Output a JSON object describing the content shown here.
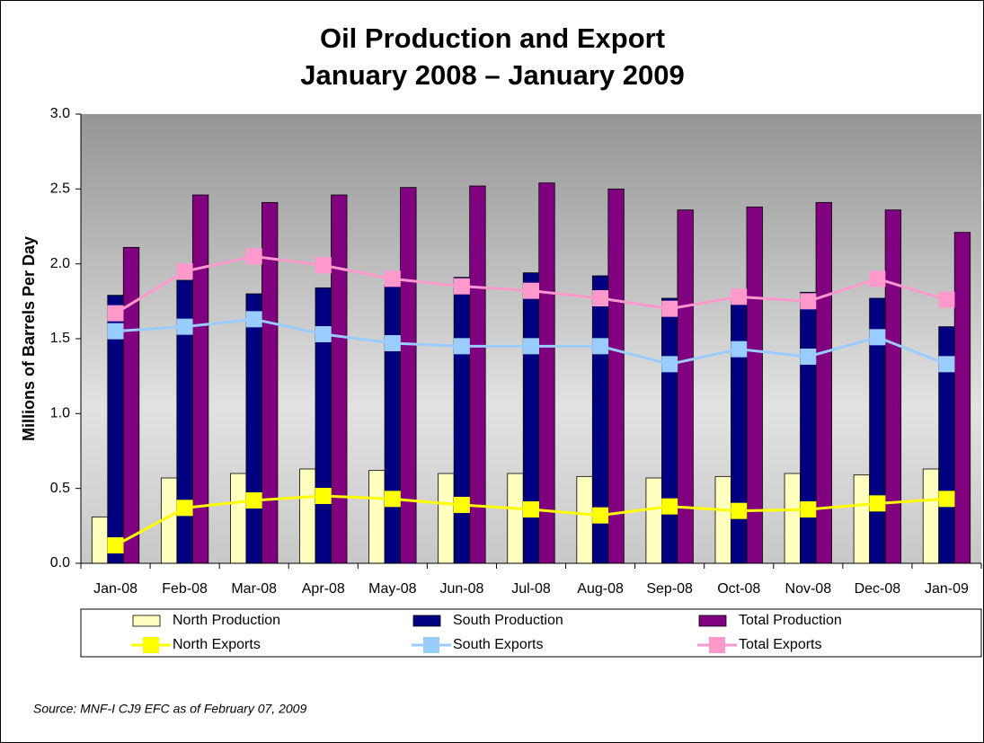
{
  "chart_data": {
    "type": "bar",
    "title": "Oil Production and Export",
    "subtitle": "January 2008 – January 2009",
    "y_label": "Millions of Barrels Per Day",
    "source": "Source:  MNF-I CJ9 EFC as of February 07, 2009",
    "categories": [
      "Jan-08",
      "Feb-08",
      "Mar-08",
      "Apr-08",
      "May-08",
      "Jun-08",
      "Jul-08",
      "Aug-08",
      "Sep-08",
      "Oct-08",
      "Nov-08",
      "Dec-08",
      "Jan-09"
    ],
    "series": [
      {
        "name": "North Production",
        "type": "bar",
        "color": "#ffffc0",
        "values": [
          0.31,
          0.57,
          0.6,
          0.63,
          0.62,
          0.6,
          0.6,
          0.58,
          0.57,
          0.58,
          0.6,
          0.59,
          0.63
        ]
      },
      {
        "name": "South Production",
        "type": "bar",
        "color": "#000080",
        "values": [
          1.79,
          1.89,
          1.8,
          1.84,
          1.86,
          1.91,
          1.94,
          1.92,
          1.77,
          1.75,
          1.81,
          1.77,
          1.58
        ]
      },
      {
        "name": "Total Production",
        "type": "bar",
        "color": "#800080",
        "values": [
          2.11,
          2.46,
          2.41,
          2.46,
          2.51,
          2.52,
          2.54,
          2.5,
          2.36,
          2.38,
          2.41,
          2.36,
          2.21
        ]
      },
      {
        "name": "North Exports",
        "type": "line",
        "color": "#ffff00",
        "values": [
          0.12,
          0.37,
          0.42,
          0.45,
          0.43,
          0.39,
          0.36,
          0.32,
          0.38,
          0.35,
          0.36,
          0.4,
          0.43
        ]
      },
      {
        "name": "South Exports",
        "type": "line",
        "color": "#99ccff",
        "values": [
          1.55,
          1.58,
          1.63,
          1.53,
          1.47,
          1.45,
          1.45,
          1.45,
          1.33,
          1.43,
          1.38,
          1.51,
          1.33
        ]
      },
      {
        "name": "Total Exports",
        "type": "line",
        "color": "#ff99cc",
        "values": [
          1.67,
          1.95,
          2.05,
          1.99,
          1.9,
          1.85,
          1.82,
          1.77,
          1.7,
          1.78,
          1.75,
          1.9,
          1.76
        ]
      }
    ],
    "ylim": [
      0,
      3
    ],
    "yticks": [
      {
        "value": 0,
        "label": "0.0"
      },
      {
        "value": 0.5,
        "label": "0.5"
      },
      {
        "value": 1,
        "label": "1.0"
      },
      {
        "value": 1.5,
        "label": "1.5"
      },
      {
        "value": 2,
        "label": "2.0"
      },
      {
        "value": 2.5,
        "label": "2.5"
      },
      {
        "value": 3,
        "label": "3.0"
      }
    ]
  }
}
